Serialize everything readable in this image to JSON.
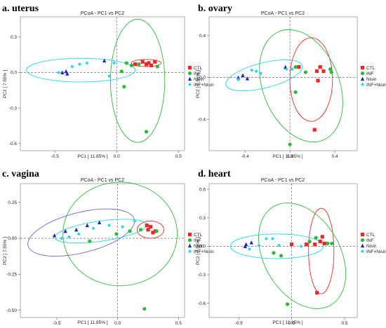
{
  "figure": {
    "colors": {
      "CTL": "#e8282b",
      "INF": "#2cb83a",
      "Nisin": "#1d24c4",
      "INF+Nisin": "#27d6e8",
      "vagina_extra_ellipse": "#7a5fd0"
    },
    "marker_shapes": {
      "CTL": "square",
      "INF": "circle",
      "Nisin": "triangle",
      "INF+Nisin": "diamond"
    },
    "legend_entries": [
      "CTL",
      "INF",
      "Nisin",
      "INF+Nisin"
    ]
  },
  "chart_data": [
    {
      "type": "scatter",
      "panel_label": "a. uterus",
      "title": "PCoA - PC1 vs PC2",
      "xlabel": "PC1 [ 11.85% ]",
      "ylabel": "PC2 [ 7.55% ]",
      "xlim": [
        -0.78,
        0.55
      ],
      "ylim": [
        -0.66,
        0.47
      ],
      "xticks": [
        -0.5,
        0.0,
        0.5
      ],
      "xtick_labels": [
        "-0.5",
        "0.0",
        "0.5"
      ],
      "yticks": [
        0.3,
        0.0,
        -0.3,
        -0.6
      ],
      "ytick_labels": [
        "0.3",
        "0.0",
        "-0.3",
        "-0.6"
      ],
      "grid": false,
      "legend_position": "right",
      "series": [
        {
          "name": "CTL",
          "x": [
            0.15,
            0.21,
            0.24,
            0.26,
            0.28,
            0.31
          ],
          "y": [
            0.07,
            0.09,
            0.07,
            0.08,
            0.06,
            0.09
          ]
        },
        {
          "name": "INF",
          "x": [
            0.08,
            0.12,
            0.18,
            0.04,
            0.06,
            0.33,
            0.24
          ],
          "y": [
            0.08,
            0.06,
            0.07,
            0.01,
            -0.12,
            0.05,
            -0.5
          ]
        },
        {
          "name": "Nisin",
          "x": [
            -0.44,
            -0.41,
            -0.4,
            -0.1
          ],
          "y": [
            0.0,
            0.01,
            -0.01,
            0.1
          ]
        },
        {
          "name": "INF+Nisin",
          "x": [
            -0.47,
            -0.36,
            -0.3,
            -0.24,
            -0.06,
            -0.02
          ],
          "y": [
            0.0,
            0.05,
            0.07,
            0.08,
            -0.03,
            0.08
          ]
        }
      ],
      "ellipses": [
        {
          "group": "CTL",
          "cx": 0.24,
          "cy": 0.08,
          "rx": 0.12,
          "ry": 0.03,
          "angle": 0
        },
        {
          "group": "INF",
          "cx": 0.17,
          "cy": -0.07,
          "rx": 0.22,
          "ry": 0.52,
          "angle": 0
        },
        {
          "group": "INF+Nisin",
          "cx": -0.29,
          "cy": 0.02,
          "rx": 0.44,
          "ry": 0.1,
          "angle": 0
        }
      ]
    },
    {
      "type": "scatter",
      "panel_label": "b. ovary",
      "title": "PCoA - PC1 vs PC2",
      "xlabel": "PC1 [ 11.85% ]",
      "ylabel": "PC2 [ 7.55% ]",
      "xlim": [
        -0.72,
        0.6
      ],
      "ylim": [
        -0.7,
        0.58
      ],
      "xticks": [
        -0.4,
        0.0,
        0.4
      ],
      "xtick_labels": [
        "-0.4",
        "0.0",
        "0.4"
      ],
      "yticks": [
        0.4,
        0.0,
        -0.4
      ],
      "ytick_labels": [
        "0.4",
        "0.0",
        "-0.4"
      ],
      "grid": false,
      "legend_position": "right",
      "series": [
        {
          "name": "CTL",
          "x": [
            0.08,
            0.24,
            0.27,
            0.3,
            0.25,
            0.22
          ],
          "y": [
            0.1,
            0.06,
            0.1,
            0.06,
            -0.03,
            -0.5
          ]
        },
        {
          "name": "INF",
          "x": [
            0.05,
            0.14,
            0.36,
            0.37,
            0.05,
            0.0
          ],
          "y": [
            0.1,
            0.05,
            0.08,
            0.05,
            -0.14,
            -0.64
          ]
        },
        {
          "name": "Nisin",
          "x": [
            -0.46,
            -0.42,
            -0.38,
            -0.04
          ],
          "y": [
            0.0,
            0.02,
            -0.01,
            0.1
          ]
        },
        {
          "name": "INF+Nisin",
          "x": [
            -0.46,
            -0.34,
            -0.3,
            -0.26,
            -0.03,
            0.02
          ],
          "y": [
            -0.02,
            0.07,
            0.06,
            0.04,
            0.08,
            0.08
          ]
        }
      ],
      "ellipses": [
        {
          "group": "CTL",
          "cx": 0.19,
          "cy": -0.02,
          "rx": 0.19,
          "ry": 0.4,
          "angle": 0
        },
        {
          "group": "INF",
          "cx": 0.1,
          "cy": -0.08,
          "rx": 0.34,
          "ry": 0.56,
          "angle": 22
        },
        {
          "group": "INF+Nisin",
          "cx": -0.23,
          "cy": 0.02,
          "rx": 0.35,
          "ry": 0.12,
          "angle": 14
        }
      ]
    },
    {
      "type": "scatter",
      "panel_label": "c. vagina",
      "title": "PCoA - PC1 vs PC2",
      "xlabel": "PC1 [ 11.85% ]",
      "ylabel": "PC2 [ 7.55% ]",
      "xlim": [
        -0.8,
        0.55
      ],
      "ylim": [
        -0.55,
        0.38
      ],
      "xticks": [
        -0.5,
        0.0,
        0.5
      ],
      "xtick_labels": [
        "-0.5",
        "0.0",
        "0.5"
      ],
      "yticks": [
        0.25,
        0.0,
        -0.25,
        -0.5
      ],
      "ytick_labels": [
        "0.25",
        "0.00",
        "-0.25",
        "-0.50"
      ],
      "grid": false,
      "legend_position": "right",
      "series": [
        {
          "name": "CTL",
          "x": [
            0.24,
            0.27,
            0.31,
            0.29,
            0.25
          ],
          "y": [
            0.09,
            0.08,
            0.05,
            0.04,
            0.06
          ]
        },
        {
          "name": "INF",
          "x": [
            0.19,
            0.32,
            0.1,
            -0.01,
            -0.23,
            0.22
          ],
          "y": [
            0.06,
            0.05,
            0.05,
            0.03,
            -0.02,
            -0.49
          ]
        },
        {
          "name": "Nisin",
          "x": [
            -0.52,
            -0.43,
            -0.34,
            -0.25,
            -0.15
          ],
          "y": [
            0.02,
            0.05,
            0.06,
            0.09,
            0.11
          ]
        },
        {
          "name": "INF+Nisin",
          "x": [
            -0.46,
            -0.4,
            -0.32,
            -0.2,
            -0.07,
            0.04,
            0.14
          ],
          "y": [
            0.0,
            0.01,
            0.03,
            0.07,
            0.09,
            0.08,
            0.12
          ]
        }
      ],
      "ellipses": [
        {
          "group": "CTL",
          "cx": 0.27,
          "cy": 0.06,
          "rx": 0.11,
          "ry": 0.06,
          "angle": 0
        },
        {
          "group": "INF",
          "cx": 0.02,
          "cy": 0.03,
          "rx": 0.47,
          "ry": 0.36,
          "angle": 0
        },
        {
          "group": "Nisin",
          "cx": -0.3,
          "cy": 0.04,
          "rx": 0.45,
          "ry": 0.14,
          "angle": 14
        },
        {
          "group": "INF+Nisin",
          "cx": -0.14,
          "cy": 0.05,
          "rx": 0.38,
          "ry": 0.07,
          "angle": 8
        }
      ]
    },
    {
      "type": "scatter",
      "panel_label": "d. heart",
      "title": "PCoA - PC1 vs PC2",
      "xlabel": "PC1 [ 11.85% ]",
      "ylabel": "PC2 [ 7.55% ]",
      "xlim": [
        -0.78,
        0.62
      ],
      "ylim": [
        -0.75,
        0.66
      ],
      "xticks": [
        -0.5,
        0.0,
        0.5
      ],
      "xtick_labels": [
        "-0.5",
        "0.0",
        "0.5"
      ],
      "yticks": [
        0.6,
        0.3,
        0.0,
        -0.3,
        -0.6
      ],
      "ytick_labels": [
        "0.6",
        "0.3",
        "0.0",
        "-0.3",
        "-0.6"
      ],
      "grid": false,
      "legend_position": "right",
      "series": [
        {
          "name": "CTL",
          "x": [
            0.0,
            0.14,
            0.22,
            0.27,
            0.29,
            0.31,
            0.24
          ],
          "y": [
            0.02,
            0.02,
            0.02,
            0.05,
            0.1,
            0.03,
            -0.49
          ]
        },
        {
          "name": "INF",
          "x": [
            0.17,
            0.23,
            0.34,
            0.38,
            -0.17,
            -0.1,
            -0.04
          ],
          "y": [
            0.05,
            0.09,
            0.03,
            0.03,
            -0.07,
            -0.1,
            -0.61
          ]
        },
        {
          "name": "Nisin",
          "x": [
            -0.44,
            -0.43,
            -0.38
          ],
          "y": [
            0.0,
            0.02,
            0.04
          ]
        },
        {
          "name": "INF+Nisin",
          "x": [
            -0.4,
            -0.31,
            -0.24,
            -0.18,
            -0.12,
            0.09
          ],
          "y": [
            -0.03,
            0.01,
            0.08,
            0.08,
            0.01,
            0.0
          ]
        }
      ],
      "ellipses": [
        {
          "group": "CTL",
          "cx": 0.28,
          "cy": -0.05,
          "rx": 0.12,
          "ry": 0.45,
          "angle": 0
        },
        {
          "group": "INF",
          "cx": 0.1,
          "cy": -0.1,
          "rx": 0.36,
          "ry": 0.6,
          "angle": 30
        },
        {
          "group": "INF+Nisin",
          "cx": -0.14,
          "cy": 0.0,
          "rx": 0.44,
          "ry": 0.13,
          "angle": 0
        }
      ]
    }
  ]
}
